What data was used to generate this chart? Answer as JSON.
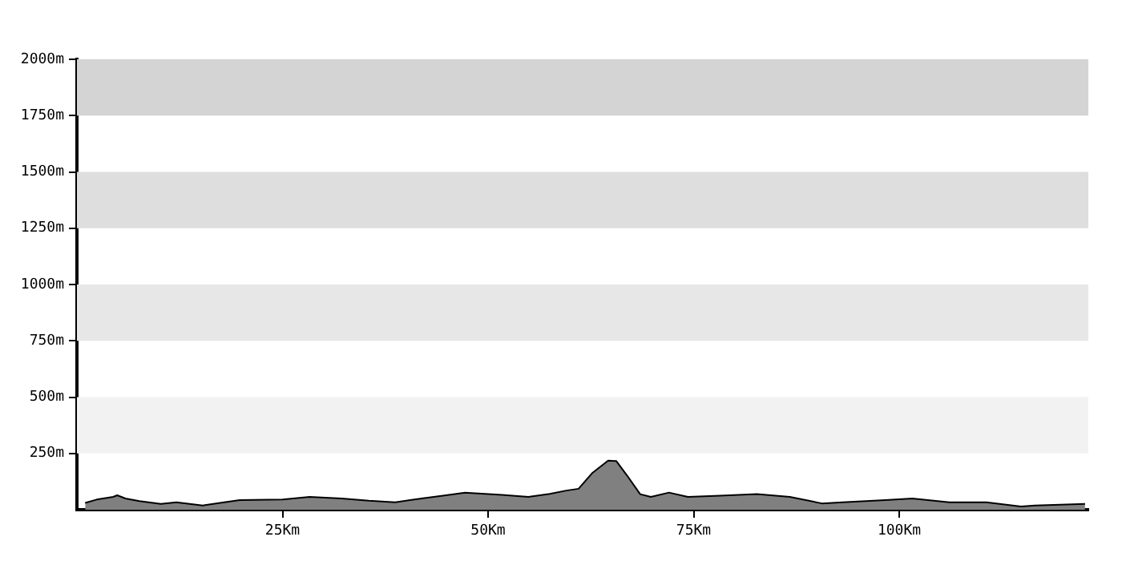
{
  "chart_data": {
    "type": "area",
    "x": [
      1.0,
      2.4,
      4.4,
      4.9,
      5.9,
      7.6,
      10.2,
      12.1,
      15.3,
      17.9,
      19.8,
      25,
      28.3,
      32.2,
      35.5,
      38.7,
      41.9,
      44.5,
      47.2,
      51.7,
      54.9,
      57.5,
      59.5,
      61.0,
      62.7,
      64.6,
      65.6,
      66.9,
      68.5,
      69.8,
      72.0,
      74.3,
      78.2,
      82.7,
      86.7,
      90.6,
      93.1,
      98.3,
      101.6,
      106.1,
      110.6,
      114.8,
      116.5,
      122.6
    ],
    "series": [
      {
        "color": "#808080",
        "values": [
          30,
          45,
          57,
          64,
          50,
          38,
          26,
          33,
          19,
          33,
          43,
          45,
          57,
          50,
          40,
          33,
          50,
          62,
          76,
          66,
          57,
          70,
          85,
          93,
          164,
          218,
          216,
          152,
          69,
          57,
          76,
          57,
          62,
          69,
          57,
          28,
          33,
          43,
          50,
          33,
          33,
          14,
          19,
          26
        ]
      }
    ],
    "xlim": [
      0,
      123
    ],
    "xticks": [
      {
        "value": 25,
        "label": "25Km"
      },
      {
        "value": 50,
        "label": "50Km"
      },
      {
        "value": 75,
        "label": "75Km"
      },
      {
        "value": 100,
        "label": "100Km"
      }
    ],
    "ylim": [
      0,
      2000
    ],
    "yticks": [
      {
        "value": 250,
        "label": "250m"
      },
      {
        "value": 500,
        "label": "500m"
      },
      {
        "value": 750,
        "label": "750m"
      },
      {
        "value": 1000,
        "label": "1000m"
      },
      {
        "value": 1250,
        "label": "1250m"
      },
      {
        "value": 1500,
        "label": "1500m"
      },
      {
        "value": 1750,
        "label": "1750m"
      },
      {
        "value": 2000,
        "label": "2000m"
      }
    ],
    "bands": [
      {
        "axis": "y",
        "from": 250,
        "to": 500,
        "color": "#f2f2f2"
      },
      {
        "axis": "y",
        "from": 750,
        "to": 1000,
        "color": "#e7e7e7"
      },
      {
        "axis": "y",
        "from": 1250,
        "to": 1500,
        "color": "#dedede"
      },
      {
        "axis": "y",
        "from": 1750,
        "to": 2000,
        "color": "#d4d4d4"
      }
    ],
    "grid": false,
    "legend": false,
    "marker": "none",
    "line_style": "solid"
  }
}
